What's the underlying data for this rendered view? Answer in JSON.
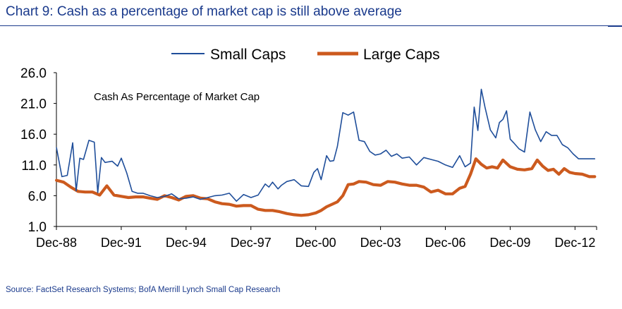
{
  "title": "Chart 9: Cash as a percentage of market cap is still above average",
  "source": "Source: FactSet Research Systems; BofA Merrill Lynch Small Cap Research",
  "colors": {
    "title": "#1a3a8c",
    "small_caps": "#1f4e9a",
    "large_caps": "#cc5a1e"
  },
  "chart_data": {
    "type": "line",
    "annotation": "Cash As Percentage of Market Cap",
    "legend_position": "top-center",
    "grid": false,
    "ylim": [
      1.0,
      26.0
    ],
    "y_ticks": [
      "1.0",
      "6.0",
      "11.0",
      "16.0",
      "21.0",
      "26.0"
    ],
    "x_tick_labels": [
      "Dec-88",
      "Dec-91",
      "Dec-94",
      "Dec-97",
      "Dec-00",
      "Dec-03",
      "Dec-06",
      "Dec-09",
      "Dec-12"
    ],
    "x_tick_years": [
      1988.917,
      1991.917,
      1994.917,
      1997.917,
      2000.917,
      2003.917,
      2006.917,
      2009.917,
      2012.917
    ],
    "x_range": [
      1988.917,
      2013.917
    ],
    "series": [
      {
        "name": "Small Caps",
        "color": "#1f4e9a",
        "x": [
          1988.92,
          1989.17,
          1989.42,
          1989.67,
          1989.83,
          1990.0,
          1990.17,
          1990.42,
          1990.67,
          1990.83,
          1991.0,
          1991.17,
          1991.33,
          1991.5,
          1991.75,
          1991.92,
          1992.17,
          1992.42,
          1992.67,
          1992.92,
          1993.25,
          1993.58,
          1993.92,
          1994.25,
          1994.58,
          1994.92,
          1995.25,
          1995.58,
          1995.92,
          1996.25,
          1996.58,
          1996.92,
          1997.25,
          1997.58,
          1997.92,
          1998.25,
          1998.58,
          1998.75,
          1998.92,
          1999.17,
          1999.33,
          1999.58,
          1999.92,
          2000.25,
          2000.58,
          2000.83,
          2001.0,
          2001.17,
          2001.42,
          2001.58,
          2001.75,
          2001.92,
          2002.17,
          2002.42,
          2002.67,
          2002.92,
          2003.17,
          2003.42,
          2003.67,
          2003.92,
          2004.17,
          2004.42,
          2004.67,
          2004.92,
          2005.25,
          2005.58,
          2005.92,
          2006.25,
          2006.58,
          2006.92,
          2007.25,
          2007.58,
          2007.83,
          2008.08,
          2008.25,
          2008.42,
          2008.58,
          2008.75,
          2009.0,
          2009.25,
          2009.42,
          2009.58,
          2009.75,
          2009.92,
          2010.08,
          2010.33,
          2010.58,
          2010.83,
          2011.08,
          2011.33,
          2011.58,
          2011.83,
          2012.08,
          2012.33,
          2012.58,
          2012.83,
          2013.08,
          2013.33,
          2013.58,
          2013.83
        ],
        "y": [
          13.8,
          9.1,
          9.3,
          14.6,
          6.8,
          12.1,
          11.9,
          15.0,
          14.7,
          6.5,
          12.2,
          11.4,
          11.5,
          11.6,
          10.8,
          12.1,
          9.7,
          6.7,
          6.4,
          6.4,
          6.0,
          5.7,
          5.9,
          6.3,
          5.5,
          5.6,
          5.8,
          5.4,
          5.7,
          6.0,
          6.1,
          6.4,
          5.1,
          6.2,
          5.7,
          6.1,
          7.9,
          7.4,
          8.2,
          7.1,
          7.7,
          8.3,
          8.6,
          7.6,
          7.5,
          9.8,
          10.4,
          8.6,
          12.5,
          11.6,
          11.7,
          14.0,
          19.5,
          19.1,
          19.6,
          15.0,
          14.8,
          13.2,
          12.6,
          12.8,
          13.4,
          12.4,
          12.8,
          12.1,
          12.3,
          11.0,
          12.2,
          11.9,
          11.6,
          11.0,
          10.6,
          12.5,
          10.7,
          11.3,
          20.4,
          16.6,
          23.3,
          20.4,
          16.7,
          15.4,
          17.9,
          18.4,
          19.8,
          15.2,
          14.6,
          13.6,
          13.1,
          19.6,
          16.7,
          14.8,
          16.4,
          15.8,
          15.8,
          14.3,
          13.8,
          12.8,
          12.0,
          12.0,
          12.0,
          12.0
        ]
      },
      {
        "name": "Large Caps",
        "color": "#cc5a1e",
        "x": [
          1988.92,
          1989.25,
          1989.58,
          1989.92,
          1990.25,
          1990.58,
          1990.92,
          1991.25,
          1991.58,
          1991.92,
          1992.25,
          1992.58,
          1992.92,
          1993.25,
          1993.58,
          1993.92,
          1994.25,
          1994.58,
          1994.92,
          1995.25,
          1995.58,
          1995.92,
          1996.25,
          1996.58,
          1996.92,
          1997.25,
          1997.58,
          1997.92,
          1998.25,
          1998.58,
          1998.92,
          1999.25,
          1999.58,
          1999.92,
          2000.25,
          2000.58,
          2000.92,
          2001.17,
          2001.42,
          2001.67,
          2001.92,
          2002.17,
          2002.42,
          2002.67,
          2002.92,
          2003.25,
          2003.58,
          2003.92,
          2004.25,
          2004.58,
          2004.92,
          2005.25,
          2005.58,
          2005.92,
          2006.25,
          2006.58,
          2006.92,
          2007.25,
          2007.58,
          2007.83,
          2008.08,
          2008.33,
          2008.58,
          2008.83,
          2009.08,
          2009.33,
          2009.58,
          2009.92,
          2010.25,
          2010.58,
          2010.92,
          2011.17,
          2011.42,
          2011.67,
          2011.92,
          2012.17,
          2012.42,
          2012.67,
          2012.92,
          2013.25,
          2013.58,
          2013.83
        ],
        "y": [
          8.5,
          8.2,
          7.4,
          6.7,
          6.6,
          6.6,
          6.1,
          7.6,
          6.1,
          5.9,
          5.7,
          5.8,
          5.8,
          5.6,
          5.4,
          6.0,
          5.7,
          5.3,
          5.9,
          6.0,
          5.6,
          5.5,
          5.0,
          4.7,
          4.6,
          4.3,
          4.4,
          4.4,
          3.8,
          3.6,
          3.6,
          3.4,
          3.1,
          2.9,
          2.8,
          2.9,
          3.2,
          3.6,
          4.2,
          4.6,
          5.0,
          6.0,
          7.8,
          7.9,
          8.3,
          8.2,
          7.8,
          7.7,
          8.3,
          8.2,
          7.9,
          7.7,
          7.7,
          7.4,
          6.6,
          6.9,
          6.3,
          6.3,
          7.2,
          7.5,
          9.5,
          12.0,
          11.1,
          10.5,
          10.7,
          10.5,
          11.8,
          10.7,
          10.3,
          10.2,
          10.4,
          11.8,
          10.8,
          10.1,
          10.3,
          9.5,
          10.4,
          9.8,
          9.6,
          9.5,
          9.1,
          9.1
        ]
      }
    ]
  }
}
